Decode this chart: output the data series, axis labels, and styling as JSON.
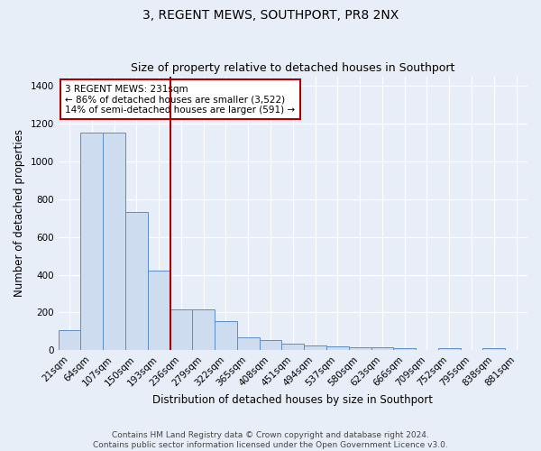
{
  "title": "3, REGENT MEWS, SOUTHPORT, PR8 2NX",
  "subtitle": "Size of property relative to detached houses in Southport",
  "xlabel": "Distribution of detached houses by size in Southport",
  "ylabel": "Number of detached properties",
  "categories": [
    "21sqm",
    "64sqm",
    "107sqm",
    "150sqm",
    "193sqm",
    "236sqm",
    "279sqm",
    "322sqm",
    "365sqm",
    "408sqm",
    "451sqm",
    "494sqm",
    "537sqm",
    "580sqm",
    "623sqm",
    "666sqm",
    "709sqm",
    "752sqm",
    "795sqm",
    "838sqm",
    "881sqm"
  ],
  "values": [
    107,
    1150,
    1150,
    730,
    420,
    215,
    215,
    155,
    70,
    55,
    35,
    25,
    22,
    15,
    15,
    12,
    0,
    12,
    0,
    12,
    0
  ],
  "bar_color": "#cddcef",
  "bar_edge_color": "#5b8dc8",
  "background_color": "#e8eef8",
  "grid_color": "#ffffff",
  "vline_x": 4.5,
  "vline_color": "#aa0000",
  "annotation_title": "3 REGENT MEWS: 231sqm",
  "annotation_line1": "← 86% of detached houses are smaller (3,522)",
  "annotation_line2": "14% of semi-detached houses are larger (591) →",
  "annotation_box_color": "#ffffff",
  "annotation_box_edge": "#aa0000",
  "footer1": "Contains HM Land Registry data © Crown copyright and database right 2024.",
  "footer2": "Contains public sector information licensed under the Open Government Licence v3.0.",
  "ylim": [
    0,
    1450
  ],
  "yticks": [
    0,
    200,
    400,
    600,
    800,
    1000,
    1200,
    1400
  ],
  "title_fontsize": 10,
  "subtitle_fontsize": 9,
  "axis_label_fontsize": 8.5,
  "tick_fontsize": 7.5,
  "annotation_fontsize": 7.5,
  "footer_fontsize": 6.5
}
